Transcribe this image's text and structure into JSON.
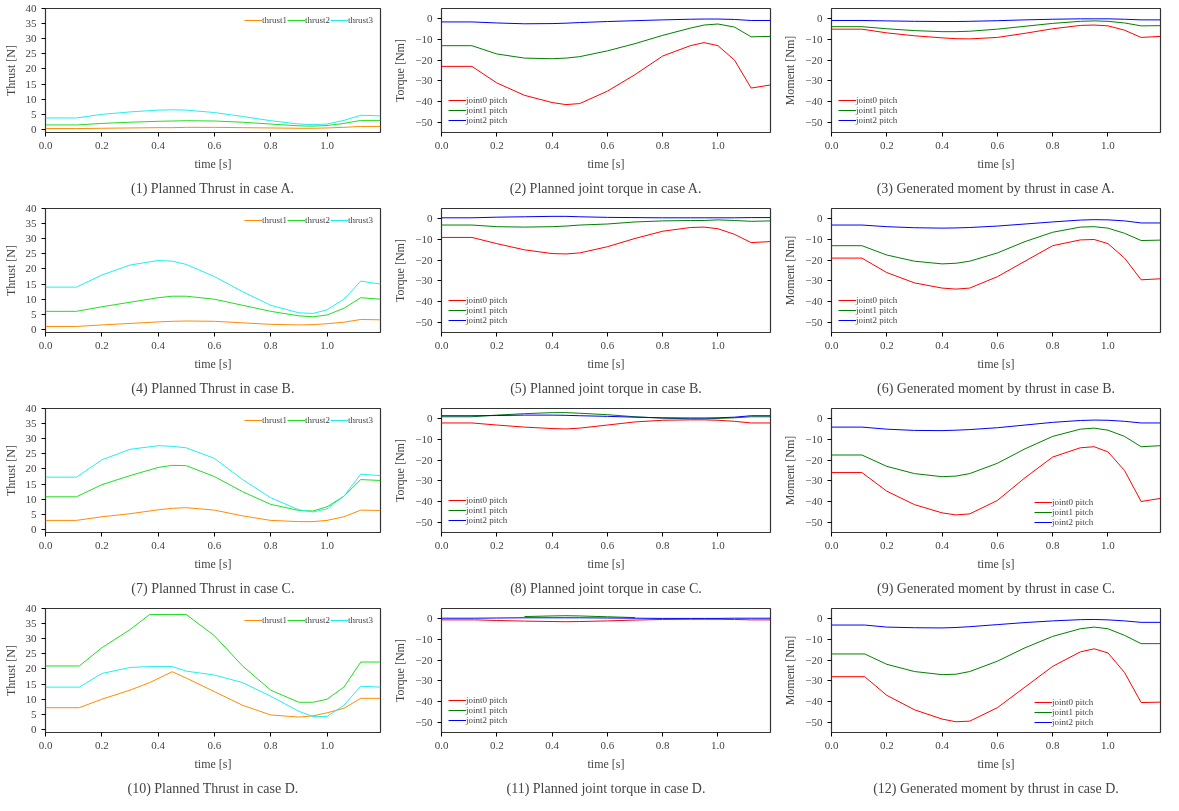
{
  "chart_data": [
    {
      "type": "line",
      "title": "(1) Planned Thrust in case A.",
      "xlabel": "time [s]",
      "ylabel": "Thrust [N]",
      "legend": "top right",
      "xlim": [
        0,
        1.19
      ],
      "xticks": [
        {
          "value": 0,
          "label": "0.0"
        },
        {
          "value": 0.2,
          "label": "0.2"
        },
        {
          "value": 0.4,
          "label": "0.4"
        },
        {
          "value": 0.6,
          "label": "0.6"
        },
        {
          "value": 0.8,
          "label": "0.8"
        },
        {
          "value": 1.0,
          "label": "1.0"
        }
      ],
      "ylim": [
        -1,
        40
      ],
      "yticks": [
        0,
        5,
        10,
        15,
        20,
        25,
        30,
        35,
        40
      ],
      "x": [
        0,
        0.11,
        0.2,
        0.3,
        0.4,
        0.45,
        0.5,
        0.6,
        0.7,
        0.8,
        0.9,
        0.95,
        1.0,
        1.06,
        1.12,
        1.19
      ],
      "series": [
        {
          "name": "thrust1",
          "color": "#ff8c00",
          "values": [
            0.3,
            0.3,
            0.4,
            0.5,
            0.6,
            0.6,
            0.7,
            0.7,
            0.6,
            0.5,
            0.4,
            0.4,
            0.5,
            0.7,
            1.0,
            1.0
          ]
        },
        {
          "name": "thrust2",
          "color": "#22dd22",
          "values": [
            1.5,
            1.5,
            2.0,
            2.4,
            2.7,
            2.8,
            2.9,
            2.8,
            2.4,
            1.8,
            1.2,
            1.1,
            1.3,
            2.0,
            3.0,
            3.0
          ]
        },
        {
          "name": "thrust3",
          "color": "#22eeee",
          "values": [
            3.8,
            3.8,
            5.0,
            5.8,
            6.4,
            6.5,
            6.4,
            5.6,
            4.3,
            2.9,
            1.8,
            1.6,
            1.8,
            3.0,
            4.7,
            4.5
          ]
        }
      ]
    },
    {
      "type": "line",
      "title": "(2) Planned joint torque in case A.",
      "xlabel": "time [s]",
      "ylabel": "Torque [Nm]",
      "legend": "bottom left",
      "xlim": [
        0,
        1.19
      ],
      "xticks": [
        {
          "value": 0,
          "label": "0.0"
        },
        {
          "value": 0.2,
          "label": "0.2"
        },
        {
          "value": 0.4,
          "label": "0.4"
        },
        {
          "value": 0.6,
          "label": "0.6"
        },
        {
          "value": 0.8,
          "label": "0.8"
        },
        {
          "value": 1.0,
          "label": "1.0"
        }
      ],
      "ylim": [
        -55,
        5
      ],
      "yticks": [
        -50,
        -40,
        -30,
        -20,
        -10,
        0
      ],
      "x": [
        0,
        0.11,
        0.2,
        0.3,
        0.4,
        0.45,
        0.5,
        0.6,
        0.7,
        0.8,
        0.9,
        0.95,
        1.0,
        1.06,
        1.12,
        1.19
      ],
      "series": [
        {
          "name": "joint0 pitch",
          "color": "#ff0000",
          "values": [
            -23,
            -23,
            -31,
            -37,
            -40.5,
            -41.5,
            -41,
            -35,
            -27,
            -18,
            -13,
            -11.5,
            -13,
            -20,
            -33.5,
            -32
          ]
        },
        {
          "name": "joint1 pitch",
          "color": "#008000",
          "values": [
            -13,
            -13,
            -17,
            -19,
            -19.3,
            -19,
            -18.3,
            -15.5,
            -12,
            -8,
            -4.5,
            -3,
            -2.5,
            -4,
            -8.7,
            -8.5
          ]
        },
        {
          "name": "joint2 pitch",
          "color": "#0000ff",
          "values": [
            -1.5,
            -1.5,
            -2,
            -2.4,
            -2.3,
            -2.1,
            -1.8,
            -1.3,
            -0.9,
            -0.5,
            -0.2,
            -0.1,
            -0.1,
            -0.3,
            -0.8,
            -0.8
          ]
        }
      ]
    },
    {
      "type": "line",
      "title": "(3) Generated moment by thrust in case A.",
      "xlabel": "time [s]",
      "ylabel": "Moment [Nm]",
      "legend": "bottom left",
      "xlim": [
        0,
        1.19
      ],
      "xticks": [
        {
          "value": 0,
          "label": "0.0"
        },
        {
          "value": 0.2,
          "label": "0.2"
        },
        {
          "value": 0.4,
          "label": "0.4"
        },
        {
          "value": 0.6,
          "label": "0.6"
        },
        {
          "value": 0.8,
          "label": "0.8"
        },
        {
          "value": 1.0,
          "label": "1.0"
        }
      ],
      "ylim": [
        -55,
        5
      ],
      "yticks": [
        -50,
        -40,
        -30,
        -20,
        -10,
        0
      ],
      "x": [
        0,
        0.11,
        0.2,
        0.3,
        0.4,
        0.45,
        0.5,
        0.6,
        0.7,
        0.8,
        0.9,
        0.95,
        1.0,
        1.06,
        1.12,
        1.19
      ],
      "series": [
        {
          "name": "joint0 pitch",
          "color": "#ff0000",
          "values": [
            -5,
            -5,
            -6.8,
            -8.2,
            -9.2,
            -9.6,
            -9.7,
            -9,
            -7,
            -4.8,
            -3.2,
            -3,
            -3.4,
            -5.5,
            -9,
            -8.5
          ]
        },
        {
          "name": "joint1 pitch",
          "color": "#008000",
          "values": [
            -3.8,
            -3.8,
            -4.8,
            -5.7,
            -6.2,
            -6.2,
            -6,
            -5,
            -3.6,
            -2.2,
            -1.2,
            -1,
            -1.2,
            -2,
            -3.4,
            -3.3
          ]
        },
        {
          "name": "joint2 pitch",
          "color": "#0000ff",
          "values": [
            -0.8,
            -0.8,
            -1.0,
            -1.2,
            -1.3,
            -1.3,
            -1.2,
            -0.9,
            -0.5,
            -0.2,
            0,
            0,
            0,
            -0.2,
            -0.5,
            -0.5
          ]
        }
      ]
    },
    {
      "type": "line",
      "title": "(4) Planned Thrust in case B.",
      "xlabel": "time [s]",
      "ylabel": "Thrust [N]",
      "legend": "top right",
      "xlim": [
        0,
        1.19
      ],
      "xticks": [
        {
          "value": 0,
          "label": "0.0"
        },
        {
          "value": 0.2,
          "label": "0.2"
        },
        {
          "value": 0.4,
          "label": "0.4"
        },
        {
          "value": 0.6,
          "label": "0.6"
        },
        {
          "value": 0.8,
          "label": "0.8"
        },
        {
          "value": 1.0,
          "label": "1.0"
        }
      ],
      "ylim": [
        -1,
        40
      ],
      "yticks": [
        0,
        5,
        10,
        15,
        20,
        25,
        30,
        35,
        40
      ],
      "x": [
        0,
        0.11,
        0.2,
        0.3,
        0.4,
        0.45,
        0.5,
        0.6,
        0.7,
        0.8,
        0.9,
        0.95,
        1.0,
        1.06,
        1.12,
        1.19
      ],
      "series": [
        {
          "name": "thrust1",
          "color": "#ff8c00",
          "values": [
            1,
            1,
            1.5,
            2,
            2.5,
            2.7,
            2.8,
            2.7,
            2.2,
            1.7,
            1.5,
            1.6,
            1.9,
            2.4,
            3.3,
            3.2
          ]
        },
        {
          "name": "thrust2",
          "color": "#22dd22",
          "values": [
            6,
            6,
            7.5,
            9,
            10.5,
            11,
            11,
            10,
            8,
            6,
            4.5,
            4.2,
            4.8,
            7,
            10.5,
            10
          ]
        },
        {
          "name": "thrust3",
          "color": "#22eeee",
          "values": [
            14,
            14,
            18,
            21.3,
            22.8,
            22.6,
            21.5,
            17.5,
            12.5,
            8,
            5.5,
            5.3,
            6.5,
            10,
            16,
            15
          ]
        }
      ]
    },
    {
      "type": "line",
      "title": "(5) Planned joint torque in case B.",
      "xlabel": "time [s]",
      "ylabel": "Torque [Nm]",
      "legend": "bottom left",
      "xlim": [
        0,
        1.19
      ],
      "xticks": [
        {
          "value": 0,
          "label": "0.0"
        },
        {
          "value": 0.2,
          "label": "0.2"
        },
        {
          "value": 0.4,
          "label": "0.4"
        },
        {
          "value": 0.6,
          "label": "0.6"
        },
        {
          "value": 0.8,
          "label": "0.8"
        },
        {
          "value": 1.0,
          "label": "1.0"
        }
      ],
      "ylim": [
        -55,
        5
      ],
      "yticks": [
        -50,
        -40,
        -30,
        -20,
        -10,
        0
      ],
      "x": [
        0,
        0.11,
        0.2,
        0.3,
        0.4,
        0.45,
        0.5,
        0.6,
        0.7,
        0.8,
        0.9,
        0.95,
        1.0,
        1.06,
        1.12,
        1.19
      ],
      "series": [
        {
          "name": "joint0 pitch",
          "color": "#ff0000",
          "values": [
            -9,
            -9,
            -12,
            -15,
            -16.8,
            -17,
            -16.5,
            -13.5,
            -9.5,
            -6,
            -4.2,
            -4,
            -4.8,
            -7.5,
            -11.5,
            -11
          ]
        },
        {
          "name": "joint1 pitch",
          "color": "#008000",
          "values": [
            -3,
            -3,
            -3.8,
            -4,
            -3.8,
            -3.5,
            -3,
            -2.5,
            -1.5,
            -1,
            -0.8,
            -0.8,
            -0.5,
            -0.8,
            -1.2,
            -1
          ]
        },
        {
          "name": "joint2 pitch",
          "color": "#0000ff",
          "values": [
            0.5,
            0.5,
            0.8,
            1,
            1.2,
            1.2,
            1,
            0.7,
            0.6,
            0.5,
            0.5,
            0.5,
            0.5,
            0.5,
            0.6,
            0.6
          ]
        }
      ]
    },
    {
      "type": "line",
      "title": "(6) Generated moment by thrust in case B.",
      "xlabel": "time [s]",
      "ylabel": "Moment [Nm]",
      "legend": "bottom left",
      "xlim": [
        0,
        1.19
      ],
      "xticks": [
        {
          "value": 0,
          "label": "0.0"
        },
        {
          "value": 0.2,
          "label": "0.2"
        },
        {
          "value": 0.4,
          "label": "0.4"
        },
        {
          "value": 0.6,
          "label": "0.6"
        },
        {
          "value": 0.8,
          "label": "0.8"
        },
        {
          "value": 1.0,
          "label": "1.0"
        }
      ],
      "ylim": [
        -55,
        5
      ],
      "yticks": [
        -50,
        -40,
        -30,
        -20,
        -10,
        0
      ],
      "x": [
        0,
        0.11,
        0.2,
        0.3,
        0.4,
        0.45,
        0.5,
        0.6,
        0.7,
        0.8,
        0.9,
        0.95,
        1.0,
        1.06,
        1.12,
        1.19
      ],
      "series": [
        {
          "name": "joint0 pitch",
          "color": "#ff0000",
          "values": [
            -19,
            -19,
            -26,
            -31,
            -33.5,
            -34,
            -33.5,
            -28,
            -20.5,
            -13,
            -10.2,
            -10,
            -12,
            -19,
            -29.5,
            -29
          ]
        },
        {
          "name": "joint1 pitch",
          "color": "#008000",
          "values": [
            -13,
            -13,
            -17.5,
            -20.5,
            -21.8,
            -21.5,
            -20.5,
            -16.5,
            -11,
            -6.5,
            -4,
            -3.8,
            -4.5,
            -7,
            -10.5,
            -10.3
          ]
        },
        {
          "name": "joint2 pitch",
          "color": "#0000ff",
          "values": [
            -3,
            -3,
            -3.8,
            -4.3,
            -4.5,
            -4.4,
            -4.2,
            -3.5,
            -2.5,
            -1.5,
            -0.6,
            -0.4,
            -0.5,
            -1,
            -2,
            -2
          ]
        }
      ]
    },
    {
      "type": "line",
      "title": "(7) Planned Thrust in case C.",
      "xlabel": "time [s]",
      "ylabel": "Thrust [N]",
      "legend": "top right",
      "xlim": [
        0,
        1.19
      ],
      "xticks": [
        {
          "value": 0,
          "label": "0.0"
        },
        {
          "value": 0.2,
          "label": "0.2"
        },
        {
          "value": 0.4,
          "label": "0.4"
        },
        {
          "value": 0.6,
          "label": "0.6"
        },
        {
          "value": 0.8,
          "label": "0.8"
        },
        {
          "value": 1.0,
          "label": "1.0"
        }
      ],
      "ylim": [
        -1,
        40
      ],
      "yticks": [
        0,
        5,
        10,
        15,
        20,
        25,
        30,
        35,
        40
      ],
      "x": [
        0,
        0.11,
        0.2,
        0.3,
        0.4,
        0.45,
        0.5,
        0.6,
        0.7,
        0.8,
        0.9,
        0.95,
        1.0,
        1.06,
        1.12,
        1.19
      ],
      "series": [
        {
          "name": "thrust1",
          "color": "#ff8c00",
          "values": [
            3,
            3,
            4.2,
            5.2,
            6.5,
            7,
            7.2,
            6.4,
            4.5,
            3,
            2.6,
            2.6,
            3,
            4.2,
            6.4,
            6.3
          ]
        },
        {
          "name": "thrust2",
          "color": "#22dd22",
          "values": [
            10.8,
            10.8,
            14.8,
            17.8,
            20.5,
            21.2,
            21.1,
            17.5,
            12.5,
            8.3,
            6.3,
            6.1,
            7.5,
            11,
            16.5,
            16.2
          ]
        },
        {
          "name": "thrust3",
          "color": "#22eeee",
          "values": [
            17.3,
            17.3,
            23,
            26.5,
            27.7,
            27.5,
            27,
            23.5,
            16.5,
            10.5,
            6.5,
            5.8,
            6.8,
            11,
            18.3,
            17.8
          ]
        }
      ]
    },
    {
      "type": "line",
      "title": "(8) Planned joint torque in case C.",
      "xlabel": "time [s]",
      "ylabel": "Torque [Nm]",
      "legend": "bottom left",
      "xlim": [
        0,
        1.19
      ],
      "xticks": [
        {
          "value": 0,
          "label": "0.0"
        },
        {
          "value": 0.2,
          "label": "0.2"
        },
        {
          "value": 0.4,
          "label": "0.4"
        },
        {
          "value": 0.6,
          "label": "0.6"
        },
        {
          "value": 0.8,
          "label": "0.8"
        },
        {
          "value": 1.0,
          "label": "1.0"
        }
      ],
      "ylim": [
        -55,
        5
      ],
      "yticks": [
        -50,
        -40,
        -30,
        -20,
        -10,
        0
      ],
      "x": [
        0,
        0.11,
        0.2,
        0.3,
        0.4,
        0.45,
        0.5,
        0.6,
        0.7,
        0.8,
        0.9,
        0.95,
        1.0,
        1.06,
        1.12,
        1.19
      ],
      "series": [
        {
          "name": "joint0 pitch",
          "color": "#ff0000",
          "values": [
            -2,
            -2,
            -3,
            -4,
            -4.7,
            -4.9,
            -4.5,
            -3,
            -1.5,
            -0.7,
            -0.5,
            -0.5,
            -0.7,
            -1.2,
            -2,
            -2
          ]
        },
        {
          "name": "joint1 pitch",
          "color": "#008000",
          "values": [
            1,
            1,
            1.8,
            2.5,
            3,
            3,
            2.7,
            2,
            1,
            0.3,
            0,
            0,
            0.2,
            0.5,
            1,
            1
          ]
        },
        {
          "name": "joint2 pitch",
          "color": "#0000ff",
          "values": [
            1.5,
            1.5,
            1.6,
            1.8,
            1.8,
            1.7,
            1.5,
            1.2,
            0.8,
            0.5,
            0.4,
            0.4,
            0.5,
            0.8,
            1.5,
            1.5
          ]
        }
      ]
    },
    {
      "type": "line",
      "title": "(9) Generated moment by thrust in case C.",
      "xlabel": "time [s]",
      "ylabel": "Moment [Nm]",
      "legend": "bottom right",
      "xlim": [
        0,
        1.19
      ],
      "xticks": [
        {
          "value": 0,
          "label": "0.0"
        },
        {
          "value": 0.2,
          "label": "0.2"
        },
        {
          "value": 0.4,
          "label": "0.4"
        },
        {
          "value": 0.6,
          "label": "0.6"
        },
        {
          "value": 0.8,
          "label": "0.8"
        },
        {
          "value": 1.0,
          "label": "1.0"
        }
      ],
      "ylim": [
        -55,
        5
      ],
      "yticks": [
        -50,
        -40,
        -30,
        -20,
        -10,
        0
      ],
      "x": [
        0,
        0.11,
        0.2,
        0.3,
        0.4,
        0.45,
        0.5,
        0.6,
        0.7,
        0.8,
        0.9,
        0.95,
        1.0,
        1.06,
        1.12,
        1.19
      ],
      "series": [
        {
          "name": "joint0 pitch",
          "color": "#ff0000",
          "values": [
            -26,
            -26,
            -35,
            -41.5,
            -45.5,
            -46.5,
            -46,
            -39.5,
            -28.5,
            -18.5,
            -14,
            -13.5,
            -16,
            -25,
            -40,
            -38.5
          ]
        },
        {
          "name": "joint1 pitch",
          "color": "#008000",
          "values": [
            -17.5,
            -17.5,
            -23,
            -26.5,
            -28,
            -27.7,
            -26.5,
            -21.5,
            -14.5,
            -8.5,
            -5,
            -4.5,
            -5.5,
            -8.5,
            -13.5,
            -13
          ]
        },
        {
          "name": "joint2 pitch",
          "color": "#0000ff",
          "values": [
            -4,
            -4,
            -5,
            -5.6,
            -5.7,
            -5.5,
            -5.2,
            -4.3,
            -3,
            -1.7,
            -0.8,
            -0.6,
            -0.7,
            -1.2,
            -2,
            -2
          ]
        }
      ]
    },
    {
      "type": "line",
      "title": "(10) Planned Thrust in case D.",
      "xlabel": "time [s]",
      "ylabel": "Thrust [N]",
      "legend": "top right",
      "xlim": [
        0,
        1.19
      ],
      "xticks": [
        {
          "value": 0,
          "label": "0.0"
        },
        {
          "value": 0.2,
          "label": "0.2"
        },
        {
          "value": 0.4,
          "label": "0.4"
        },
        {
          "value": 0.6,
          "label": "0.6"
        },
        {
          "value": 0.8,
          "label": "0.8"
        },
        {
          "value": 1.0,
          "label": "1.0"
        }
      ],
      "ylim": [
        -1,
        40
      ],
      "yticks": [
        0,
        5,
        10,
        15,
        20,
        25,
        30,
        35,
        40
      ],
      "x": [
        0,
        0.12,
        0.2,
        0.3,
        0.37,
        0.45,
        0.5,
        0.6,
        0.7,
        0.8,
        0.9,
        0.95,
        1.0,
        1.06,
        1.12,
        1.19
      ],
      "series": [
        {
          "name": "thrust1",
          "color": "#ff8c00",
          "values": [
            7.2,
            7.2,
            10,
            13,
            15.5,
            19.1,
            17,
            12.5,
            8,
            4.8,
            4.1,
            4.5,
            5.5,
            7,
            10.3,
            10.3
          ]
        },
        {
          "name": "thrust2",
          "color": "#22dd22",
          "values": [
            21,
            21,
            27,
            33,
            38,
            38,
            38,
            31,
            21,
            13,
            9,
            9,
            10,
            14,
            22.3,
            22.3
          ]
        },
        {
          "name": "thrust3",
          "color": "#22eeee",
          "values": [
            14,
            14,
            18.5,
            20.5,
            20.8,
            20.8,
            19.3,
            18,
            15.5,
            11,
            6,
            4.3,
            4.3,
            8,
            14.3,
            14
          ]
        }
      ]
    },
    {
      "type": "line",
      "title": "(11) Planned joint torque in case D.",
      "xlabel": "time [s]",
      "ylabel": "Torque [Nm]",
      "legend": "bottom left",
      "xlim": [
        0,
        1.19
      ],
      "xticks": [
        {
          "value": 0,
          "label": "0.0"
        },
        {
          "value": 0.2,
          "label": "0.2"
        },
        {
          "value": 0.4,
          "label": "0.4"
        },
        {
          "value": 0.6,
          "label": "0.6"
        },
        {
          "value": 0.8,
          "label": "0.8"
        },
        {
          "value": 1.0,
          "label": "1.0"
        }
      ],
      "ylim": [
        -55,
        5
      ],
      "yticks": [
        -50,
        -40,
        -30,
        -20,
        -10,
        0
      ],
      "x": [
        0,
        0.12,
        0.2,
        0.3,
        0.4,
        0.45,
        0.5,
        0.6,
        0.7,
        0.8,
        0.9,
        0.95,
        1.0,
        1.06,
        1.12,
        1.19
      ],
      "series": [
        {
          "name": "joint0 pitch",
          "color": "#ff0000",
          "values": [
            -0.5,
            -0.5,
            -0.8,
            -1.1,
            -1.3,
            -1.4,
            -1.3,
            -1,
            -0.6,
            -0.3,
            -0.2,
            -0.2,
            -0.2,
            -0.3,
            -0.5,
            -0.5
          ]
        },
        {
          "name": "joint1 pitch",
          "color": "#008000",
          "values": [
            null,
            null,
            null,
            1.1,
            1.4,
            1.5,
            1.4,
            1,
            0.6,
            null,
            null,
            null,
            null,
            null,
            null,
            null
          ]
        },
        {
          "name": "joint2 pitch",
          "color": "#0000ff",
          "values": [
            0.3,
            0.3,
            0.4,
            0.5,
            0.5,
            0.5,
            0.5,
            0.4,
            0.3,
            0.2,
            0.2,
            0.2,
            0.2,
            0.3,
            0.3,
            0.3
          ]
        }
      ]
    },
    {
      "type": "line",
      "title": "(12) Generated moment by thrust in case D.",
      "xlabel": "time [s]",
      "ylabel": "Moment [Nm]",
      "legend": "bottom right",
      "xlim": [
        0,
        1.19
      ],
      "xticks": [
        {
          "value": 0,
          "label": "0.0"
        },
        {
          "value": 0.2,
          "label": "0.2"
        },
        {
          "value": 0.4,
          "label": "0.4"
        },
        {
          "value": 0.6,
          "label": "0.6"
        },
        {
          "value": 0.8,
          "label": "0.8"
        },
        {
          "value": 1.0,
          "label": "1.0"
        }
      ],
      "ylim": [
        -55,
        5
      ],
      "yticks": [
        -50,
        -40,
        -30,
        -20,
        -10,
        0
      ],
      "x": [
        0,
        0.12,
        0.2,
        0.3,
        0.4,
        0.45,
        0.5,
        0.6,
        0.7,
        0.8,
        0.9,
        0.95,
        1.0,
        1.06,
        1.12,
        1.19
      ],
      "series": [
        {
          "name": "joint0 pitch",
          "color": "#ff0000",
          "values": [
            -28,
            -28,
            -37,
            -44,
            -48.5,
            -49.8,
            -49.5,
            -43,
            -33,
            -23,
            -16,
            -14.5,
            -16.5,
            -26,
            -40.5,
            -40.3
          ]
        },
        {
          "name": "joint1 pitch",
          "color": "#008000",
          "values": [
            -17,
            -17,
            -22,
            -25.5,
            -27,
            -26.8,
            -25.5,
            -20.5,
            -14,
            -8.5,
            -4.8,
            -4,
            -4.8,
            -8,
            -12,
            -12
          ]
        },
        {
          "name": "joint2 pitch",
          "color": "#0000ff",
          "values": [
            -3,
            -3,
            -4,
            -4.3,
            -4.4,
            -4.2,
            -3.8,
            -2.8,
            -1.8,
            -1,
            -0.4,
            -0.3,
            -0.5,
            -1,
            -1.7,
            -1.7
          ]
        }
      ]
    }
  ]
}
